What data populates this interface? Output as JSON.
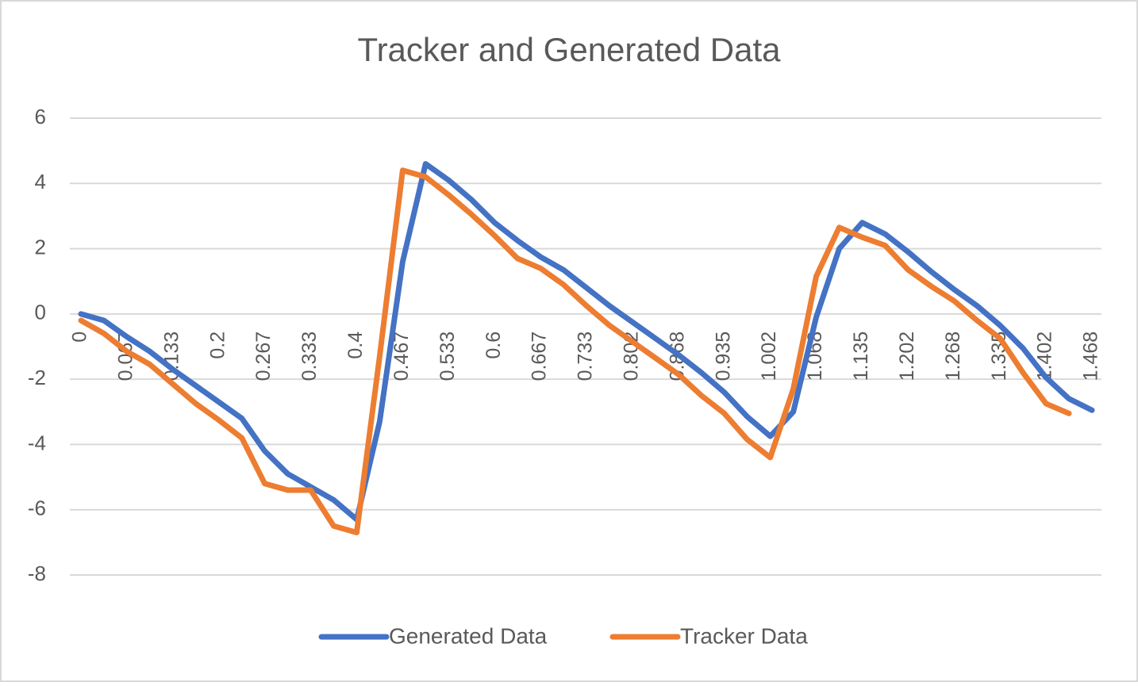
{
  "chart_data": {
    "type": "line",
    "title": "Tracker and Generated Data",
    "categories": [
      "0",
      null,
      "0.067",
      null,
      "0.133",
      null,
      "0.2",
      null,
      "0.267",
      null,
      "0.333",
      null,
      "0.4",
      null,
      "0.467",
      null,
      "0.533",
      null,
      "0.6",
      null,
      "0.667",
      null,
      "0.733",
      null,
      "0.802",
      null,
      "0.868",
      null,
      "0.935",
      null,
      "1.002",
      null,
      "1.068",
      null,
      "1.135",
      null,
      "1.202",
      null,
      "1.268",
      null,
      "1.335",
      null,
      "1.402",
      null,
      "1.468"
    ],
    "series": [
      {
        "name": "Generated Data",
        "color": "#4472c4",
        "values": [
          0,
          -0.2,
          -0.7,
          -1.15,
          -1.7,
          -2.2,
          -2.7,
          -3.2,
          -4.2,
          -4.9,
          -5.3,
          -5.7,
          -6.3,
          -3.3,
          1.6,
          4.6,
          4.1,
          3.5,
          2.8,
          2.25,
          1.75,
          1.35,
          0.8,
          0.25,
          -0.25,
          -0.75,
          -1.25,
          -1.8,
          -2.4,
          -3.15,
          -3.75,
          -3.0,
          -0.1,
          2.0,
          2.8,
          2.45,
          1.9,
          1.3,
          0.75,
          0.25,
          -0.35,
          -1.05,
          -1.95,
          -2.6,
          -2.95
        ]
      },
      {
        "name": "Tracker Data",
        "color": "#ed7d31",
        "values": [
          -0.2,
          -0.6,
          -1.15,
          -1.55,
          -2.15,
          -2.75,
          -3.25,
          -3.8,
          -5.2,
          -5.4,
          -5.4,
          -6.5,
          -6.7,
          -1.3,
          4.4,
          4.2,
          3.65,
          3.05,
          2.4,
          1.7,
          1.4,
          0.9,
          0.25,
          -0.35,
          -0.85,
          -1.35,
          -1.85,
          -2.5,
          -3.05,
          -3.85,
          -4.4,
          -2.3,
          1.15,
          2.65,
          2.35,
          2.1,
          1.35,
          0.85,
          0.4,
          -0.2,
          -0.75,
          -1.8,
          -2.75,
          -3.05,
          null
        ]
      }
    ],
    "ylim": [
      -8,
      6
    ],
    "yticks": [
      -8,
      -6,
      -4,
      -2,
      0,
      2,
      4,
      6
    ],
    "grid": true,
    "legend": "bottom"
  }
}
